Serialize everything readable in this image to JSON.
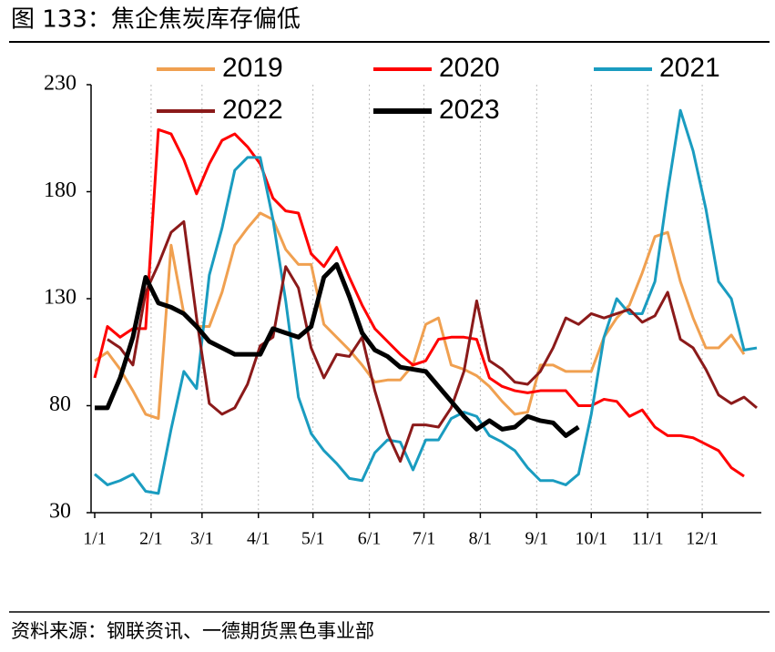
{
  "title": "图 133：焦企焦炭库存偏低",
  "source": "资料来源：钢联资讯、一德期货黑色事业部",
  "chart_data": {
    "type": "line",
    "x": [
      0,
      7,
      14,
      21,
      28,
      35,
      42,
      49,
      56,
      63,
      70,
      77,
      84,
      91,
      98,
      105,
      112,
      119,
      126,
      133,
      140,
      147,
      154,
      161,
      168,
      175,
      182,
      189,
      196,
      203,
      210,
      217,
      224,
      231,
      238,
      245,
      252,
      259,
      266,
      273,
      280,
      287,
      294,
      301,
      308,
      315,
      322,
      329,
      336,
      343,
      350,
      357,
      364
    ],
    "xlim": [
      0,
      366
    ],
    "xticks": [
      {
        "value": 0,
        "label": "1/1"
      },
      {
        "value": 31,
        "label": "2/1"
      },
      {
        "value": 59,
        "label": "3/1"
      },
      {
        "value": 90,
        "label": "4/1"
      },
      {
        "value": 120,
        "label": "5/1"
      },
      {
        "value": 151,
        "label": "6/1"
      },
      {
        "value": 181,
        "label": "7/1"
      },
      {
        "value": 212,
        "label": "8/1"
      },
      {
        "value": 243,
        "label": "9/1"
      },
      {
        "value": 273,
        "label": "10/1"
      },
      {
        "value": 304,
        "label": "11/1"
      },
      {
        "value": 334,
        "label": "12/1"
      }
    ],
    "ylim": [
      30,
      230
    ],
    "yticks": [
      30,
      80,
      130,
      180,
      230
    ],
    "grid": true,
    "series": [
      {
        "name": "2019",
        "color": "#f0a050",
        "width": 3,
        "values": [
          101,
          105,
          97,
          87,
          76,
          74,
          155,
          123,
          117,
          117,
          133,
          155,
          163,
          170,
          167,
          153,
          146,
          146,
          118,
          112,
          106,
          99,
          91,
          92,
          92,
          99,
          118,
          121,
          99,
          97,
          94,
          89,
          82,
          76,
          77,
          99,
          99,
          96,
          96,
          96,
          112,
          121,
          127,
          142,
          159,
          161,
          138,
          121,
          107,
          107,
          113,
          104,
          null
        ]
      },
      {
        "name": "2020",
        "color": "#ff0000",
        "width": 3,
        "values": [
          93,
          117,
          112,
          116,
          116,
          209,
          207,
          195,
          179,
          193,
          204,
          207,
          201,
          193,
          177,
          171,
          170,
          151,
          145,
          154,
          140,
          127,
          116,
          110,
          104,
          99,
          101,
          111,
          112,
          112,
          111,
          93,
          89,
          87,
          86,
          87,
          87,
          87,
          80,
          80,
          83,
          82,
          75,
          78,
          70,
          66,
          66,
          65,
          62,
          59,
          51,
          47,
          null
        ]
      },
      {
        "name": "2021",
        "color": "#1a9cc0",
        "width": 3,
        "values": [
          48,
          43,
          45,
          48,
          40,
          39,
          69,
          96,
          88,
          141,
          163,
          190,
          196,
          196,
          167,
          129,
          84,
          67,
          59,
          53,
          46,
          45,
          58,
          64,
          63,
          50,
          64,
          64,
          74,
          77,
          75,
          66,
          63,
          59,
          51,
          45,
          45,
          43,
          48,
          76,
          112,
          130,
          123,
          123,
          138,
          180,
          218,
          199,
          172,
          138,
          130,
          106,
          107
        ]
      },
      {
        "name": "2022",
        "color": "#8b1a1a",
        "width": 3,
        "values": [
          null,
          111,
          107,
          99,
          133,
          146,
          161,
          166,
          121,
          81,
          76,
          79,
          90,
          108,
          112,
          145,
          135,
          107,
          93,
          104,
          103,
          112,
          87,
          67,
          54,
          71,
          71,
          70,
          79,
          96,
          129,
          101,
          97,
          91,
          90,
          96,
          107,
          121,
          118,
          123,
          121,
          123,
          125,
          119,
          122,
          133,
          111,
          107,
          97,
          85,
          81,
          84,
          79
        ]
      },
      {
        "name": "2023",
        "color": "#000000",
        "width": 5,
        "values": [
          79,
          79,
          93,
          112,
          140,
          128,
          126,
          123,
          117,
          110,
          107,
          104,
          104,
          104,
          116,
          114,
          112,
          117,
          140,
          146,
          131,
          114,
          106,
          103,
          98,
          97,
          96,
          89,
          82,
          75,
          69,
          73,
          69,
          70,
          75,
          73,
          72,
          66,
          70,
          null,
          null,
          null,
          null,
          null,
          null,
          null,
          null,
          null,
          null,
          null,
          null,
          null,
          null
        ]
      }
    ]
  }
}
